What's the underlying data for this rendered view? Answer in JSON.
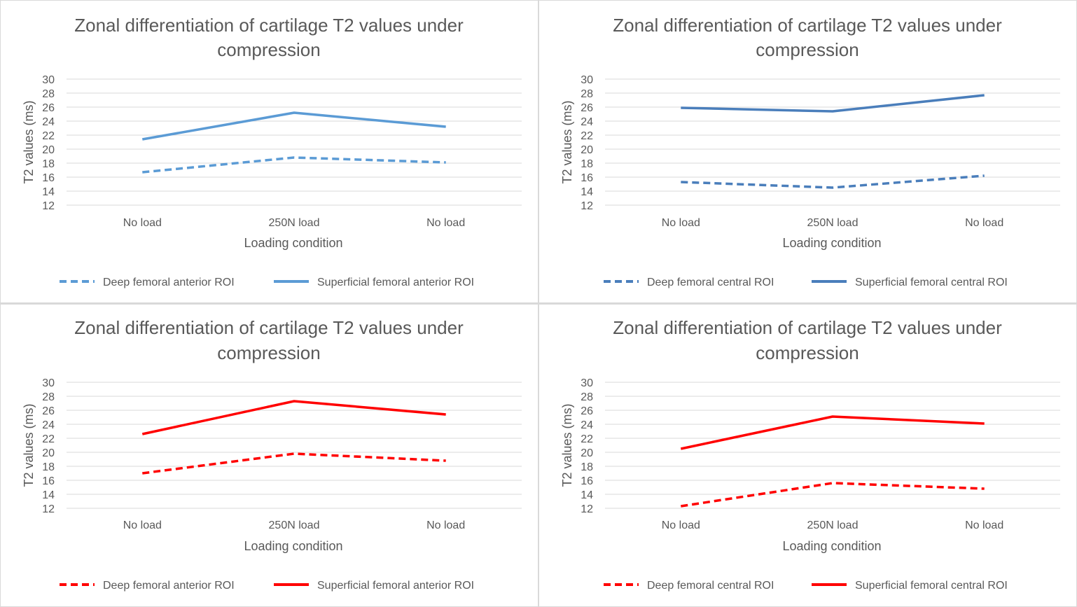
{
  "chart_data": [
    {
      "type": "line",
      "title_line1": "Zonal differentiation of cartilage T2 values under",
      "title_line2": "compression",
      "xlabel": "Loading condition",
      "ylabel": "T2 values (ms)",
      "ylim": [
        12,
        30
      ],
      "yticks": [
        "12",
        "14",
        "16",
        "18",
        "20",
        "22",
        "24",
        "26",
        "28",
        "30"
      ],
      "categories": [
        "No load",
        "250N load",
        "No load"
      ],
      "grid": true,
      "legend": "bottom",
      "series": [
        {
          "name": "Deep femoral anterior ROI",
          "values": [
            16.7,
            18.8,
            18.1
          ],
          "color": "#5b9bd5",
          "dash": true
        },
        {
          "name": "Superficial femoral anterior ROI",
          "values": [
            21.4,
            25.2,
            23.2
          ],
          "color": "#5b9bd5",
          "dash": false
        }
      ]
    },
    {
      "type": "line",
      "title_line1": "Zonal differentiation of cartilage T2 values under",
      "title_line2": "compression",
      "xlabel": "Loading condition",
      "ylabel": "T2 values (ms)",
      "ylim": [
        12,
        30
      ],
      "yticks": [
        "12",
        "14",
        "16",
        "18",
        "20",
        "22",
        "24",
        "26",
        "28",
        "30"
      ],
      "categories": [
        "No load",
        "250N load",
        "No load"
      ],
      "grid": true,
      "legend": "bottom",
      "series": [
        {
          "name": "Deep femoral central ROI",
          "values": [
            15.3,
            14.5,
            16.2
          ],
          "color": "#4a7ebb",
          "dash": true
        },
        {
          "name": "Superficial femoral central ROI",
          "values": [
            25.9,
            25.4,
            27.7
          ],
          "color": "#4a7ebb",
          "dash": false
        }
      ]
    },
    {
      "type": "line",
      "title_line1": "Zonal differentiation of cartilage T2 values under",
      "title_line2": "compression",
      "xlabel": "Loading condition",
      "ylabel": "T2 values (ms)",
      "ylim": [
        12,
        30
      ],
      "yticks": [
        "12",
        "14",
        "16",
        "18",
        "20",
        "22",
        "24",
        "26",
        "28",
        "30"
      ],
      "categories": [
        "No load",
        "250N load",
        "No load"
      ],
      "grid": true,
      "legend": "bottom",
      "series": [
        {
          "name": "Deep femoral anterior ROI",
          "values": [
            17.0,
            19.8,
            18.8
          ],
          "color": "#ff0000",
          "dash": true
        },
        {
          "name": "Superficial femoral anterior ROI",
          "values": [
            22.6,
            27.3,
            25.4
          ],
          "color": "#ff0000",
          "dash": false
        }
      ]
    },
    {
      "type": "line",
      "title_line1": "Zonal differentiation of cartilage T2 values under",
      "title_line2": "compression",
      "xlabel": "Loading condition",
      "ylabel": "T2 values (ms)",
      "ylim": [
        12,
        30
      ],
      "yticks": [
        "12",
        "14",
        "16",
        "18",
        "20",
        "22",
        "24",
        "26",
        "28",
        "30"
      ],
      "categories": [
        "No load",
        "250N load",
        "No load"
      ],
      "grid": true,
      "legend": "bottom",
      "series": [
        {
          "name": "Deep femoral central ROI",
          "values": [
            12.3,
            15.6,
            14.8
          ],
          "color": "#ff0000",
          "dash": true
        },
        {
          "name": "Superficial femoral central ROI",
          "values": [
            20.5,
            25.1,
            24.1
          ],
          "color": "#ff0000",
          "dash": false
        }
      ]
    }
  ]
}
